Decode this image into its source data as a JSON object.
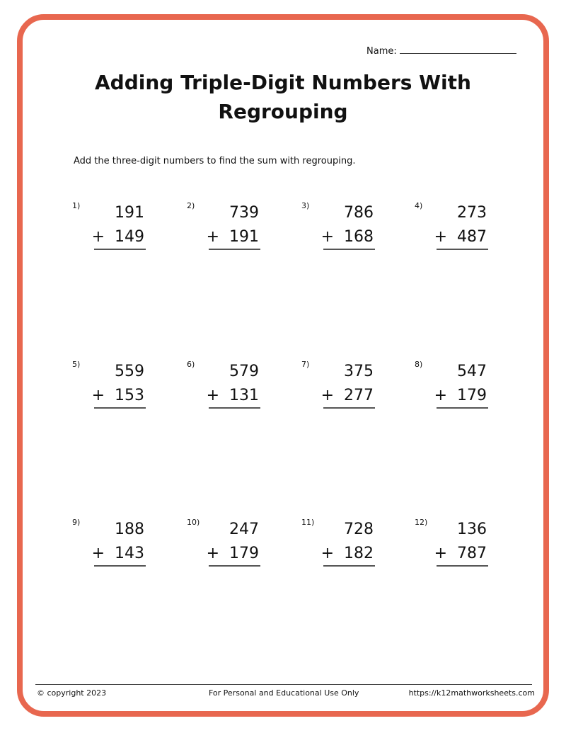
{
  "header": {
    "name_label": "Name:",
    "title": "Adding Triple-Digit Numbers With Regrouping"
  },
  "instructions": "Add the three-digit numbers to find the sum with regrouping.",
  "operator": "+",
  "problems": [
    {
      "label": "1)",
      "top": "191",
      "bottom": "149"
    },
    {
      "label": "2)",
      "top": "739",
      "bottom": "191"
    },
    {
      "label": "3)",
      "top": "786",
      "bottom": "168"
    },
    {
      "label": "4)",
      "top": "273",
      "bottom": "487"
    },
    {
      "label": "5)",
      "top": "559",
      "bottom": "153"
    },
    {
      "label": "6)",
      "top": "579",
      "bottom": "131"
    },
    {
      "label": "7)",
      "top": "375",
      "bottom": "277"
    },
    {
      "label": "8)",
      "top": "547",
      "bottom": "179"
    },
    {
      "label": "9)",
      "top": "188",
      "bottom": "143"
    },
    {
      "label": "10)",
      "top": "247",
      "bottom": "179"
    },
    {
      "label": "11)",
      "top": "728",
      "bottom": "182"
    },
    {
      "label": "12)",
      "top": "136",
      "bottom": "787"
    }
  ],
  "footer": {
    "copyright": "© copyright 2023",
    "usage": "For Personal and Educational Use Only",
    "url": "https://k12mathworksheets.com"
  },
  "colors": {
    "border": "#e8674f"
  }
}
